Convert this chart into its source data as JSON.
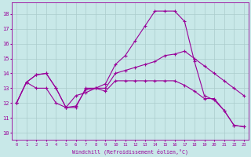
{
  "background_color": "#c8e8e8",
  "grid_color": "#aacccc",
  "line_color": "#990099",
  "xlabel": "Windchill (Refroidissement éolien,°C)",
  "ylabel_ticks": [
    10,
    11,
    12,
    13,
    14,
    15,
    16,
    17,
    18
  ],
  "xlim": [
    -0.5,
    23.5
  ],
  "ylim": [
    9.5,
    18.8
  ],
  "series": [
    {
      "x": [
        0,
        1,
        2,
        3,
        4,
        5,
        6,
        7,
        8,
        9,
        10,
        11,
        12,
        13,
        14,
        15,
        16,
        17,
        18,
        19,
        20,
        21,
        22,
        23
      ],
      "y": [
        12.0,
        13.4,
        13.9,
        14.0,
        13.0,
        11.7,
        12.5,
        12.7,
        13.0,
        13.3,
        14.6,
        15.2,
        16.2,
        17.2,
        18.2,
        18.2,
        18.2,
        17.5,
        14.8,
        12.5,
        12.2,
        11.5,
        10.5,
        10.4
      ]
    },
    {
      "x": [
        0,
        1,
        2,
        3,
        4,
        5,
        6,
        7,
        8,
        9,
        10,
        11,
        12,
        13,
        14,
        15,
        16,
        17,
        18,
        19,
        20,
        21,
        22,
        23
      ],
      "y": [
        12.0,
        13.4,
        13.9,
        14.0,
        13.0,
        11.7,
        11.8,
        12.9,
        13.0,
        13.0,
        14.0,
        14.2,
        14.4,
        14.6,
        14.8,
        15.2,
        15.3,
        15.5,
        15.0,
        14.5,
        14.0,
        13.5,
        13.0,
        12.5
      ]
    },
    {
      "x": [
        0,
        1,
        2,
        3,
        4,
        5,
        6,
        7,
        8,
        9,
        10,
        11,
        12,
        13,
        14,
        15,
        16,
        17,
        18,
        19,
        20,
        21,
        22,
        23
      ],
      "y": [
        12.0,
        13.4,
        13.0,
        13.0,
        12.0,
        11.7,
        11.7,
        13.0,
        13.0,
        12.8,
        13.5,
        13.5,
        13.5,
        13.5,
        13.5,
        13.5,
        13.5,
        13.2,
        12.8,
        12.3,
        12.3,
        11.5,
        10.5,
        10.4
      ]
    }
  ]
}
